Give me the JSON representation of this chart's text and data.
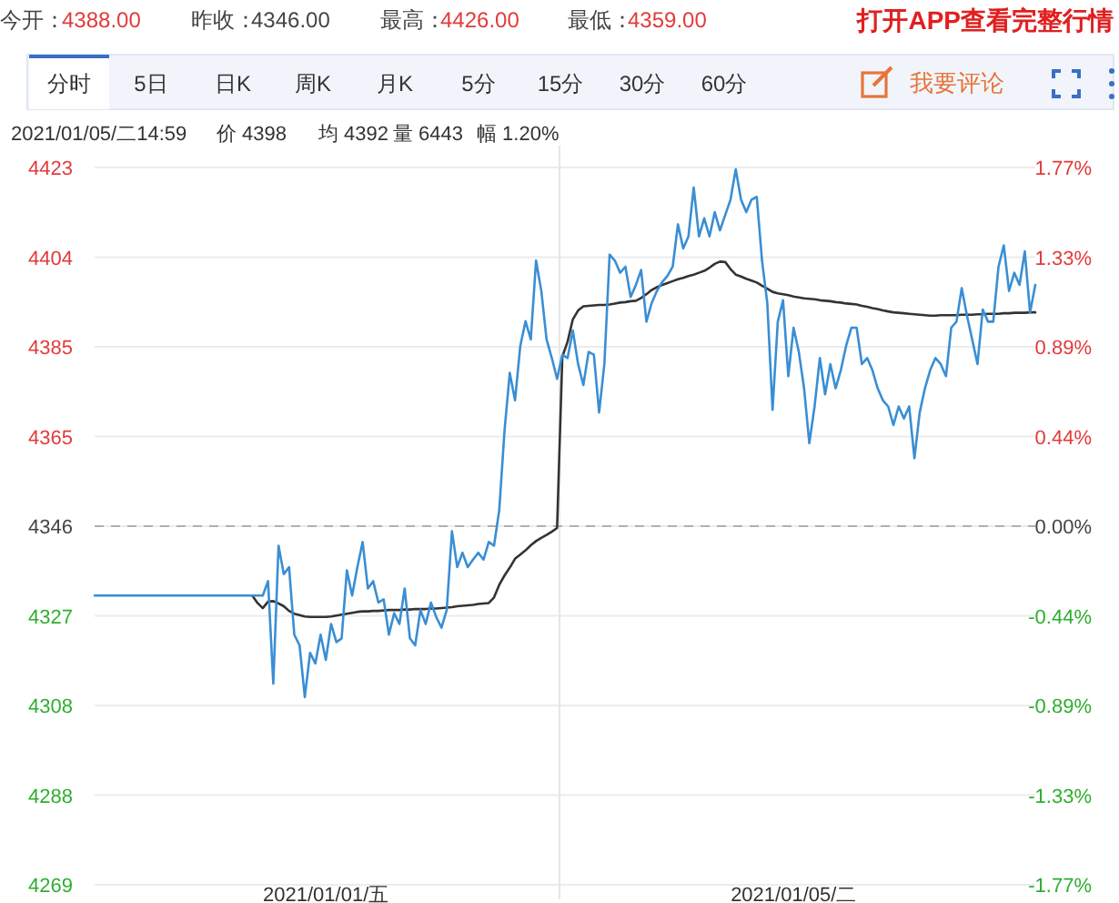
{
  "chart_data": {
    "type": "line",
    "grid": "y",
    "marker": "none",
    "line_style": "solid",
    "categories": [
      null,
      null,
      null,
      null,
      null,
      null,
      null,
      null,
      null,
      null,
      null,
      null,
      null,
      null,
      null,
      null,
      null,
      null,
      null,
      null,
      null,
      null,
      null,
      null,
      null,
      null,
      null,
      null,
      null,
      null,
      null,
      null,
      null,
      null,
      null,
      null,
      null,
      null,
      null,
      null,
      null,
      null,
      null,
      null,
      "2021/01/01/五",
      null,
      null,
      null,
      null,
      null,
      null,
      null,
      null,
      null,
      null,
      null,
      null,
      null,
      null,
      null,
      null,
      null,
      null,
      null,
      null,
      null,
      null,
      null,
      null,
      null,
      null,
      null,
      null,
      null,
      null,
      null,
      null,
      null,
      null,
      null,
      null,
      null,
      null,
      null,
      null,
      null,
      null,
      null,
      null,
      null,
      null,
      null,
      null,
      null,
      null,
      null,
      null,
      null,
      null,
      null,
      null,
      null,
      null,
      null,
      null,
      null,
      null,
      null,
      null,
      null,
      null,
      null,
      null,
      null,
      null,
      null,
      null,
      null,
      null,
      null,
      null,
      null,
      null,
      null,
      null,
      null,
      null,
      null,
      null,
      null,
      null,
      null,
      null,
      "2021/01/05/二",
      null,
      null,
      null,
      null,
      null,
      null,
      null,
      null,
      null,
      null,
      null,
      null,
      null,
      null,
      null,
      null,
      null,
      null,
      null,
      null,
      null,
      null,
      null,
      null,
      null,
      null,
      null,
      null,
      null,
      null,
      null,
      null,
      null,
      null,
      null,
      null,
      null,
      null,
      null,
      null,
      null,
      null,
      null,
      null,
      null,
      null
    ],
    "ylim": [
      4269,
      4423
    ],
    "yticks": [
      {
        "value": 4269,
        "label": "4269"
      },
      {
        "value": 4288.25,
        "label": "4288"
      },
      {
        "value": 4307.5,
        "label": "4308"
      },
      {
        "value": 4326.75,
        "label": "4327"
      },
      {
        "value": 4346,
        "label": "4346"
      },
      {
        "value": 4365.25,
        "label": "4365"
      },
      {
        "value": 4384.5,
        "label": "4385"
      },
      {
        "value": 4403.75,
        "label": "4404"
      },
      {
        "value": 4423,
        "label": "4423"
      }
    ],
    "y2lim": [
      -1.77,
      1.77
    ],
    "y2ticks": [
      {
        "value": -1.77,
        "label": "-1.77%"
      },
      {
        "value": -1.3275,
        "label": "-1.33%"
      },
      {
        "value": -0.885,
        "label": "-0.89%"
      },
      {
        "value": -0.4425,
        "label": "-0.44%"
      },
      {
        "value": 0,
        "label": "0.00%"
      },
      {
        "value": 0.4425,
        "label": "0.44%"
      },
      {
        "value": 0.885,
        "label": "0.89%"
      },
      {
        "value": 1.3275,
        "label": "1.33%"
      },
      {
        "value": 1.77,
        "label": "1.77%"
      }
    ],
    "ref_lines": [
      {
        "axis": "y",
        "value": 4346,
        "color": "#b0b0b0",
        "line_style": "dashed"
      }
    ],
    "series": [
      {
        "color": "#333333",
        "values": [
          null,
          null,
          null,
          null,
          null,
          null,
          null,
          null,
          null,
          null,
          null,
          null,
          null,
          null,
          null,
          null,
          null,
          null,
          null,
          null,
          null,
          null,
          null,
          null,
          null,
          null,
          null,
          null,
          null,
          null,
          4331.1,
          4329.5,
          4328.4,
          4329.8,
          4329.9,
          4329.4,
          4328.8,
          4327.8,
          4327.2,
          4326.9,
          4326.6,
          4326.5,
          4326.5,
          4326.5,
          4326.5,
          4326.6,
          4326.8,
          4327.0,
          4327.2,
          4327.4,
          4327.6,
          4327.7,
          4327.7,
          4327.8,
          4327.8,
          4327.9,
          4328.0,
          4328.0,
          4328.0,
          4328.1,
          4328.1,
          4328.2,
          4328.2,
          4328.2,
          4328.3,
          4328.3,
          4328.4,
          4328.5,
          4328.6,
          4328.8,
          4328.9,
          4329.0,
          4329.1,
          4329.3,
          4329.4,
          4329.5,
          4330.7,
          4333.4,
          4335.4,
          4337.1,
          4339.0,
          4339.9,
          4340.8,
          4341.9,
          4342.8,
          4343.5,
          4344.1,
          4344.8,
          4345.6,
          4382.4,
          4385.6,
          4390.4,
          4392.3,
          4393.2,
          4393.3,
          4393.4,
          4393.5,
          4393.5,
          4393.6,
          4393.8,
          4394.0,
          4394.1,
          4394.3,
          4394.4,
          4395.0,
          4395.8,
          4396.7,
          4397.3,
          4397.8,
          4398.2,
          4398.6,
          4399.0,
          4399.3,
          4399.7,
          4400.0,
          4400.4,
          4400.8,
          4401.5,
          4402.3,
          4402.8,
          4402.7,
          4401.2,
          4400.0,
          4399.6,
          4399.1,
          4398.7,
          4398.3,
          4397.6,
          4397.0,
          4396.3,
          4396.0,
          4395.8,
          4395.6,
          4395.3,
          4395.1,
          4394.9,
          4394.8,
          4394.7,
          4394.5,
          4394.4,
          4394.3,
          4394.1,
          4394.0,
          4393.8,
          4393.7,
          4393.6,
          4393.3,
          4393.1,
          4392.8,
          4392.6,
          4392.3,
          4392.1,
          4391.9,
          4391.8,
          4391.7,
          4391.6,
          4391.5,
          4391.4,
          4391.3,
          4391.2,
          4391.2,
          4391.3,
          4391.3,
          4391.3,
          4391.3,
          4391.4,
          4391.4,
          4391.4,
          4391.5,
          4391.5,
          4391.6,
          4391.6,
          4391.6,
          4391.7,
          4391.7,
          4391.8,
          4391.8,
          4391.8,
          4391.9,
          4391.9
        ]
      },
      {
        "color": "#3a8ed4",
        "values": [
          4331.1,
          4331.1,
          4331.1,
          4331.1,
          4331.1,
          4331.1,
          4331.1,
          4331.1,
          4331.1,
          4331.1,
          4331.1,
          4331.1,
          4331.1,
          4331.1,
          4331.1,
          4331.1,
          4331.1,
          4331.1,
          4331.1,
          4331.1,
          4331.1,
          4331.1,
          4331.1,
          4331.1,
          4331.1,
          4331.1,
          4331.1,
          4331.1,
          4331.1,
          4331.1,
          4331.1,
          4331.1,
          4331.1,
          4334.2,
          4312.2,
          4341.8,
          4335.7,
          4337.2,
          4322.7,
          4320.4,
          4309.3,
          4318.8,
          4316.5,
          4322.7,
          4317.3,
          4325.0,
          4321.1,
          4321.9,
          4336.5,
          4331.1,
          4337.2,
          4342.6,
          4332.6,
          4334.2,
          4329.6,
          4330.3,
          4322.7,
          4327.3,
          4325.0,
          4332.6,
          4321.9,
          4320.4,
          4328.0,
          4325.0,
          4329.6,
          4326.5,
          4324.2,
          4328.0,
          4344.9,
          4337.2,
          4340.3,
          4337.2,
          4338.8,
          4340.3,
          4338.8,
          4342.6,
          4341.8,
          4349.5,
          4366.5,
          4378.9,
          4373.0,
          4384.7,
          4390.0,
          4386.1,
          4403.0,
          4396.5,
          4386.1,
          4382.1,
          4377.6,
          4382.8,
          4382.1,
          4388.0,
          4380.8,
          4376.3,
          4383.4,
          4382.8,
          4370.4,
          4380.8,
          4404.3,
          4403.0,
          4400.4,
          4401.7,
          4395.2,
          4397.8,
          4401.0,
          4389.9,
          4393.9,
          4396.5,
          4398.4,
          4399.7,
          4401.7,
          4410.8,
          4405.6,
          4408.2,
          4418.7,
          4408.2,
          4412.1,
          4408.2,
          4413.4,
          4409.5,
          4412.8,
          4416.1,
          4422.6,
          4416.1,
          4413.4,
          4416.1,
          4416.7,
          4403.0,
          4393.9,
          4371.0,
          4389.9,
          4394.5,
          4378.2,
          4388.6,
          4383.4,
          4375.6,
          4363.8,
          4371.7,
          4382.1,
          4374.3,
          4380.8,
          4375.6,
          4379.5,
          4384.7,
          4388.6,
          4388.6,
          4380.8,
          4382.1,
          4379.5,
          4375.6,
          4373.0,
          4371.7,
          4367.7,
          4371.7,
          4369.1,
          4371.7,
          4360.6,
          4370.4,
          4375.6,
          4379.5,
          4382.1,
          4380.8,
          4378.2,
          4388.6,
          4389.9,
          4397.1,
          4391.2,
          4386.0,
          4380.8,
          4392.5,
          4389.9,
          4389.9,
          4401.7,
          4406.3,
          4396.5,
          4400.4,
          4397.8,
          4405.0,
          4391.9,
          4397.8
        ]
      }
    ],
    "annotations": [
      "今开：",
      "4388.00",
      "昨收：",
      "4346.00",
      "最高：",
      "4426.00",
      "最低：",
      "4359.00",
      "打开APP查看完整行情",
      "分时",
      "5日",
      "日K",
      "周K",
      "月K",
      "5分",
      "15分",
      "30分",
      "60分",
      "我要评论",
      "2021/01/05/二14:59",
      "价 4398",
      "均 4392",
      "量 6443",
      "幅 1.20%"
    ]
  }
}
